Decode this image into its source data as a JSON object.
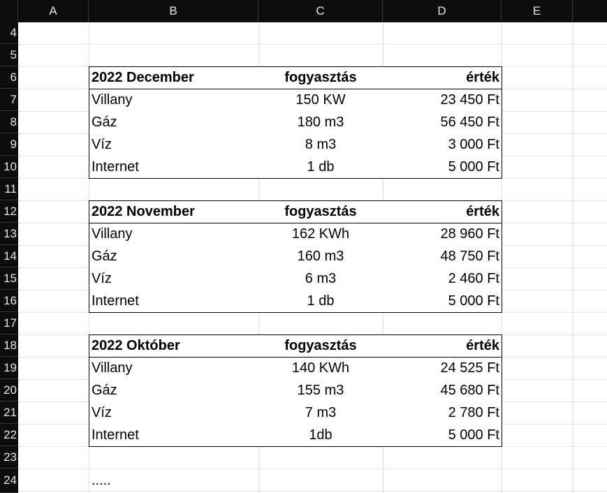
{
  "columns": [
    "A",
    "B",
    "C",
    "D",
    "E"
  ],
  "rows": [
    "4",
    "5",
    "6",
    "7",
    "8",
    "9",
    "10",
    "11",
    "12",
    "13",
    "14",
    "15",
    "16",
    "17",
    "18",
    "19",
    "20",
    "21",
    "22",
    "23",
    "24"
  ],
  "tables": [
    {
      "month": "2022 December",
      "col_consumption": "fogyasztás",
      "col_value": "érték",
      "items": [
        {
          "name": "Villany",
          "consumption": "150 KW",
          "value": "23 450 Ft"
        },
        {
          "name": "Gáz",
          "consumption": "180 m3",
          "value": "56 450 Ft"
        },
        {
          "name": "Víz",
          "consumption": "8 m3",
          "value": "3 000 Ft"
        },
        {
          "name": "Internet",
          "consumption": "1 db",
          "value": "5 000 Ft"
        }
      ]
    },
    {
      "month": "2022 November",
      "col_consumption": "fogyasztás",
      "col_value": "érték",
      "items": [
        {
          "name": "Villany",
          "consumption": "162 KWh",
          "value": "28 960 Ft"
        },
        {
          "name": "Gáz",
          "consumption": "160 m3",
          "value": "48 750 Ft"
        },
        {
          "name": "Víz",
          "consumption": "6 m3",
          "value": "2 460 Ft"
        },
        {
          "name": "Internet",
          "consumption": "1 db",
          "value": "5 000 Ft"
        }
      ]
    },
    {
      "month": "2022 Október",
      "col_consumption": "fogyasztás",
      "col_value": "érték",
      "items": [
        {
          "name": "Villany",
          "consumption": "140 KWh",
          "value": "24 525 Ft"
        },
        {
          "name": "Gáz",
          "consumption": "155 m3",
          "value": "45 680 Ft"
        },
        {
          "name": "Víz",
          "consumption": "7 m3",
          "value": "2 780 Ft"
        },
        {
          "name": "Internet",
          "consumption": "1db",
          "value": "5 000 Ft"
        }
      ]
    }
  ],
  "ellipsis": "....."
}
